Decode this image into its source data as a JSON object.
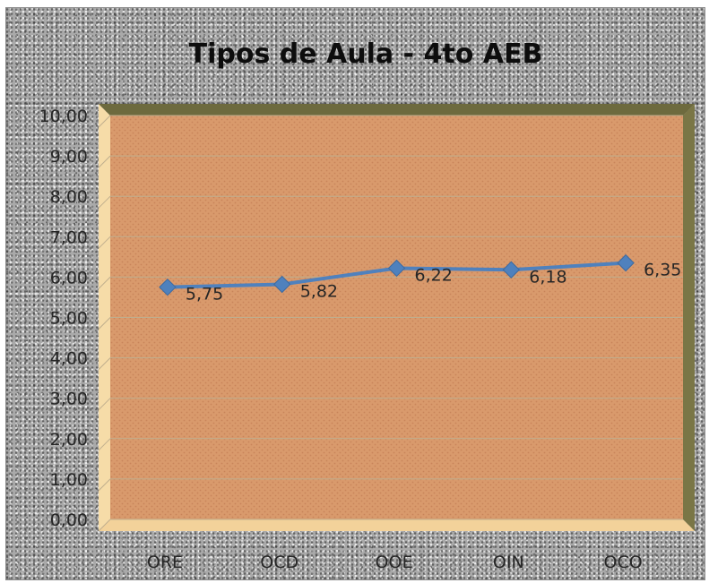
{
  "colors": {
    "plot_fill": "#d99a6c",
    "plot_hatch": "#c8845a",
    "wall_top": "#6d6a3e",
    "wall_right": "#7a7646",
    "wall_left": "#f6dca8",
    "floor": "#f3d29a",
    "gridline": "#bfae8e",
    "series_line": "#4f81bd"
  },
  "chart_data": {
    "type": "line",
    "title": "Tipos de Aula - 4to AEB",
    "categories": [
      "ORE",
      "OCD",
      "OOE",
      "OIN",
      "OCO"
    ],
    "series": [
      {
        "values": [
          5.75,
          5.82,
          6.22,
          6.18,
          6.35
        ]
      }
    ],
    "data_labels": [
      "5,75",
      "5,82",
      "6,22",
      "6,18",
      "6,35"
    ],
    "ylim": [
      0,
      10
    ],
    "yticks": [
      "0,00",
      "1,00",
      "2,00",
      "3,00",
      "4,00",
      "5,00",
      "6,00",
      "7,00",
      "8,00",
      "9,00",
      "10,00"
    ],
    "grid": true,
    "legend": "none",
    "marker": "diamond"
  }
}
